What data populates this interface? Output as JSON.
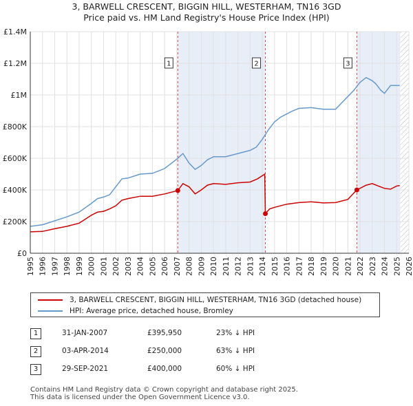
{
  "colors": {
    "property": "#cc0000",
    "hpi": "#6699cc",
    "shade": "#e8eef8",
    "grid": "#e0e0e0",
    "marker_line": "#cc0000"
  },
  "title_line1": "3, BARWELL CRESCENT, BIGGIN HILL, WESTERHAM, TN16 3GD",
  "title_line2": "Price paid vs. HM Land Registry's House Price Index (HPI)",
  "chart_data": {
    "type": "line",
    "xlim": [
      1995,
      2026
    ],
    "ylim": [
      0,
      1400000
    ],
    "yticks": [
      0,
      200000,
      400000,
      600000,
      800000,
      1000000,
      1200000,
      1400000
    ],
    "ytick_labels": [
      "£0",
      "£200K",
      "£400K",
      "£600K",
      "£800K",
      "£1M",
      "£1.2M",
      "£1.4M"
    ],
    "xticks": [
      1995,
      1996,
      1997,
      1998,
      1999,
      2000,
      2001,
      2002,
      2003,
      2004,
      2005,
      2006,
      2007,
      2008,
      2009,
      2010,
      2011,
      2012,
      2013,
      2014,
      2015,
      2016,
      2017,
      2018,
      2019,
      2020,
      2021,
      2022,
      2023,
      2024,
      2025,
      2026
    ],
    "xtick_labels": [
      "1995",
      "1996",
      "1997",
      "1998",
      "1999",
      "2000",
      "2001",
      "2002",
      "2003",
      "2004",
      "2005",
      "2006",
      "2007",
      "2008",
      "2009",
      "2010",
      "2011",
      "2012",
      "2013",
      "2014",
      "2015",
      "2016",
      "2017",
      "2018",
      "2019",
      "2020",
      "2021",
      "2022",
      "2023",
      "2024",
      "2025",
      "2026"
    ],
    "shaded_spans": [
      [
        2007.08,
        2014.25
      ],
      [
        2021.74,
        2025.3
      ]
    ],
    "future_hatch_start": 2025.3,
    "series": [
      {
        "name": "HPI",
        "color": "#6699cc",
        "x": [
          1995,
          1996,
          1997,
          1998,
          1999,
          2000,
          2000.5,
          2001,
          2001.5,
          2002,
          2002.5,
          2003,
          2004,
          2005,
          2006,
          2007,
          2007.5,
          2008,
          2008.5,
          2009,
          2009.5,
          2010,
          2011,
          2012,
          2013,
          2013.5,
          2014,
          2014.5,
          2015,
          2015.5,
          2016,
          2016.5,
          2017,
          2018,
          2019,
          2020,
          2020.5,
          2021,
          2021.5,
          2022,
          2022.5,
          2023,
          2023.3,
          2023.7,
          2024,
          2024.5,
          2025,
          2025.25
        ],
        "y": [
          170000,
          180000,
          205000,
          230000,
          260000,
          315000,
          345000,
          355000,
          370000,
          420000,
          470000,
          475000,
          500000,
          505000,
          535000,
          595000,
          630000,
          570000,
          530000,
          555000,
          590000,
          610000,
          610000,
          630000,
          650000,
          670000,
          720000,
          780000,
          830000,
          860000,
          880000,
          900000,
          915000,
          920000,
          910000,
          910000,
          950000,
          990000,
          1030000,
          1080000,
          1110000,
          1090000,
          1070000,
          1030000,
          1010000,
          1060000,
          1060000,
          1060000
        ]
      },
      {
        "name": "Property",
        "color": "#cc0000",
        "x": [
          1995,
          1996,
          1997,
          1998,
          1999,
          2000,
          2000.5,
          2001,
          2001.5,
          2002,
          2002.5,
          2003,
          2004,
          2005,
          2006,
          2007.08,
          2007.5,
          2008,
          2008.5,
          2009,
          2009.5,
          2010,
          2011,
          2012,
          2013,
          2013.6,
          2014.2,
          2014.25,
          2014.6,
          2015,
          2016,
          2017,
          2018,
          2019,
          2020,
          2021,
          2021.74,
          2022,
          2022.5,
          2023,
          2023.5,
          2024,
          2024.5,
          2025,
          2025.25
        ],
        "y": [
          135000,
          138000,
          155000,
          170000,
          190000,
          240000,
          260000,
          265000,
          280000,
          300000,
          335000,
          345000,
          360000,
          360000,
          375000,
          395950,
          440000,
          420000,
          375000,
          400000,
          430000,
          440000,
          435000,
          445000,
          450000,
          470000,
          500000,
          250000,
          280000,
          290000,
          310000,
          320000,
          325000,
          318000,
          320000,
          340000,
          400000,
          410000,
          430000,
          440000,
          425000,
          410000,
          405000,
          425000,
          428000
        ]
      }
    ],
    "sales": [
      {
        "id": "1",
        "x": 2007.08,
        "y": 395950
      },
      {
        "id": "2",
        "x": 2014.25,
        "y": 250000
      },
      {
        "id": "3",
        "x": 2021.74,
        "y": 400000
      }
    ]
  },
  "legend": {
    "property_label": "3, BARWELL CRESCENT, BIGGIN HILL, WESTERHAM, TN16 3GD (detached house)",
    "hpi_label": "HPI: Average price, detached house, Bromley"
  },
  "sales_table": [
    {
      "num": "1",
      "date": "31-JAN-2007",
      "price": "£395,950",
      "hpi": "23% ↓ HPI"
    },
    {
      "num": "2",
      "date": "03-APR-2014",
      "price": "£250,000",
      "hpi": "63% ↓ HPI"
    },
    {
      "num": "3",
      "date": "29-SEP-2021",
      "price": "£400,000",
      "hpi": "60% ↓ HPI"
    }
  ],
  "footer_line1": "Contains HM Land Registry data © Crown copyright and database right 2025.",
  "footer_line2": "This data is licensed under the Open Government Licence v3.0."
}
